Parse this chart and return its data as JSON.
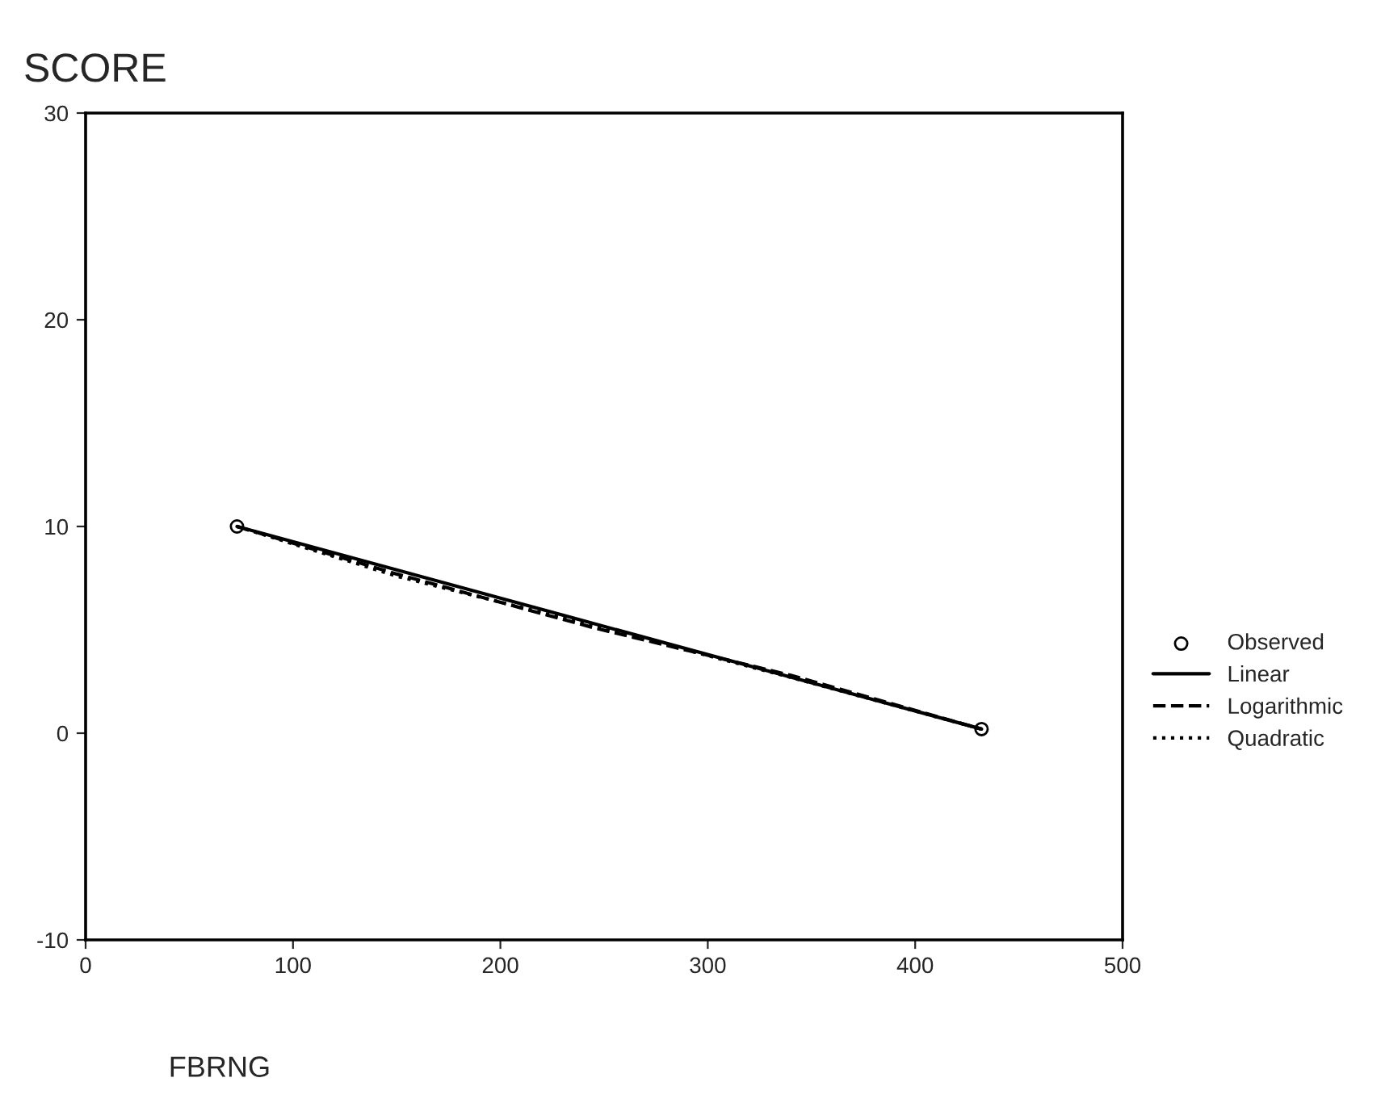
{
  "chart_data": {
    "type": "line",
    "title": "SCORE",
    "xlabel": "FBRNG",
    "xlim": [
      0,
      500
    ],
    "xticks": [
      0,
      100,
      200,
      300,
      400,
      500
    ],
    "ylim": [
      -10,
      30
    ],
    "yticks": [
      -10,
      0,
      10,
      20,
      30
    ],
    "grid": false,
    "legend": "right",
    "series": [
      {
        "name": "Observed",
        "type": "scatter",
        "marker": "circle",
        "color": "#000000",
        "x": [
          73,
          432
        ],
        "values": [
          10,
          0.2
        ]
      },
      {
        "name": "Linear",
        "line_style": "solid",
        "color": "#000000",
        "x": [
          73,
          432
        ],
        "values": [
          10,
          0.2
        ]
      },
      {
        "name": "Logarithmic",
        "line_style": "dashed",
        "color": "#000000",
        "x": [
          73,
          150,
          245,
          340,
          432
        ],
        "values": [
          10,
          7.7,
          5.1,
          2.8,
          0.2
        ]
      },
      {
        "name": "Quadratic",
        "line_style": "dotted",
        "color": "#000000",
        "x": [
          73,
          150,
          245,
          340,
          432
        ],
        "values": [
          10,
          7.6,
          5.2,
          2.7,
          0.2
        ]
      }
    ]
  }
}
